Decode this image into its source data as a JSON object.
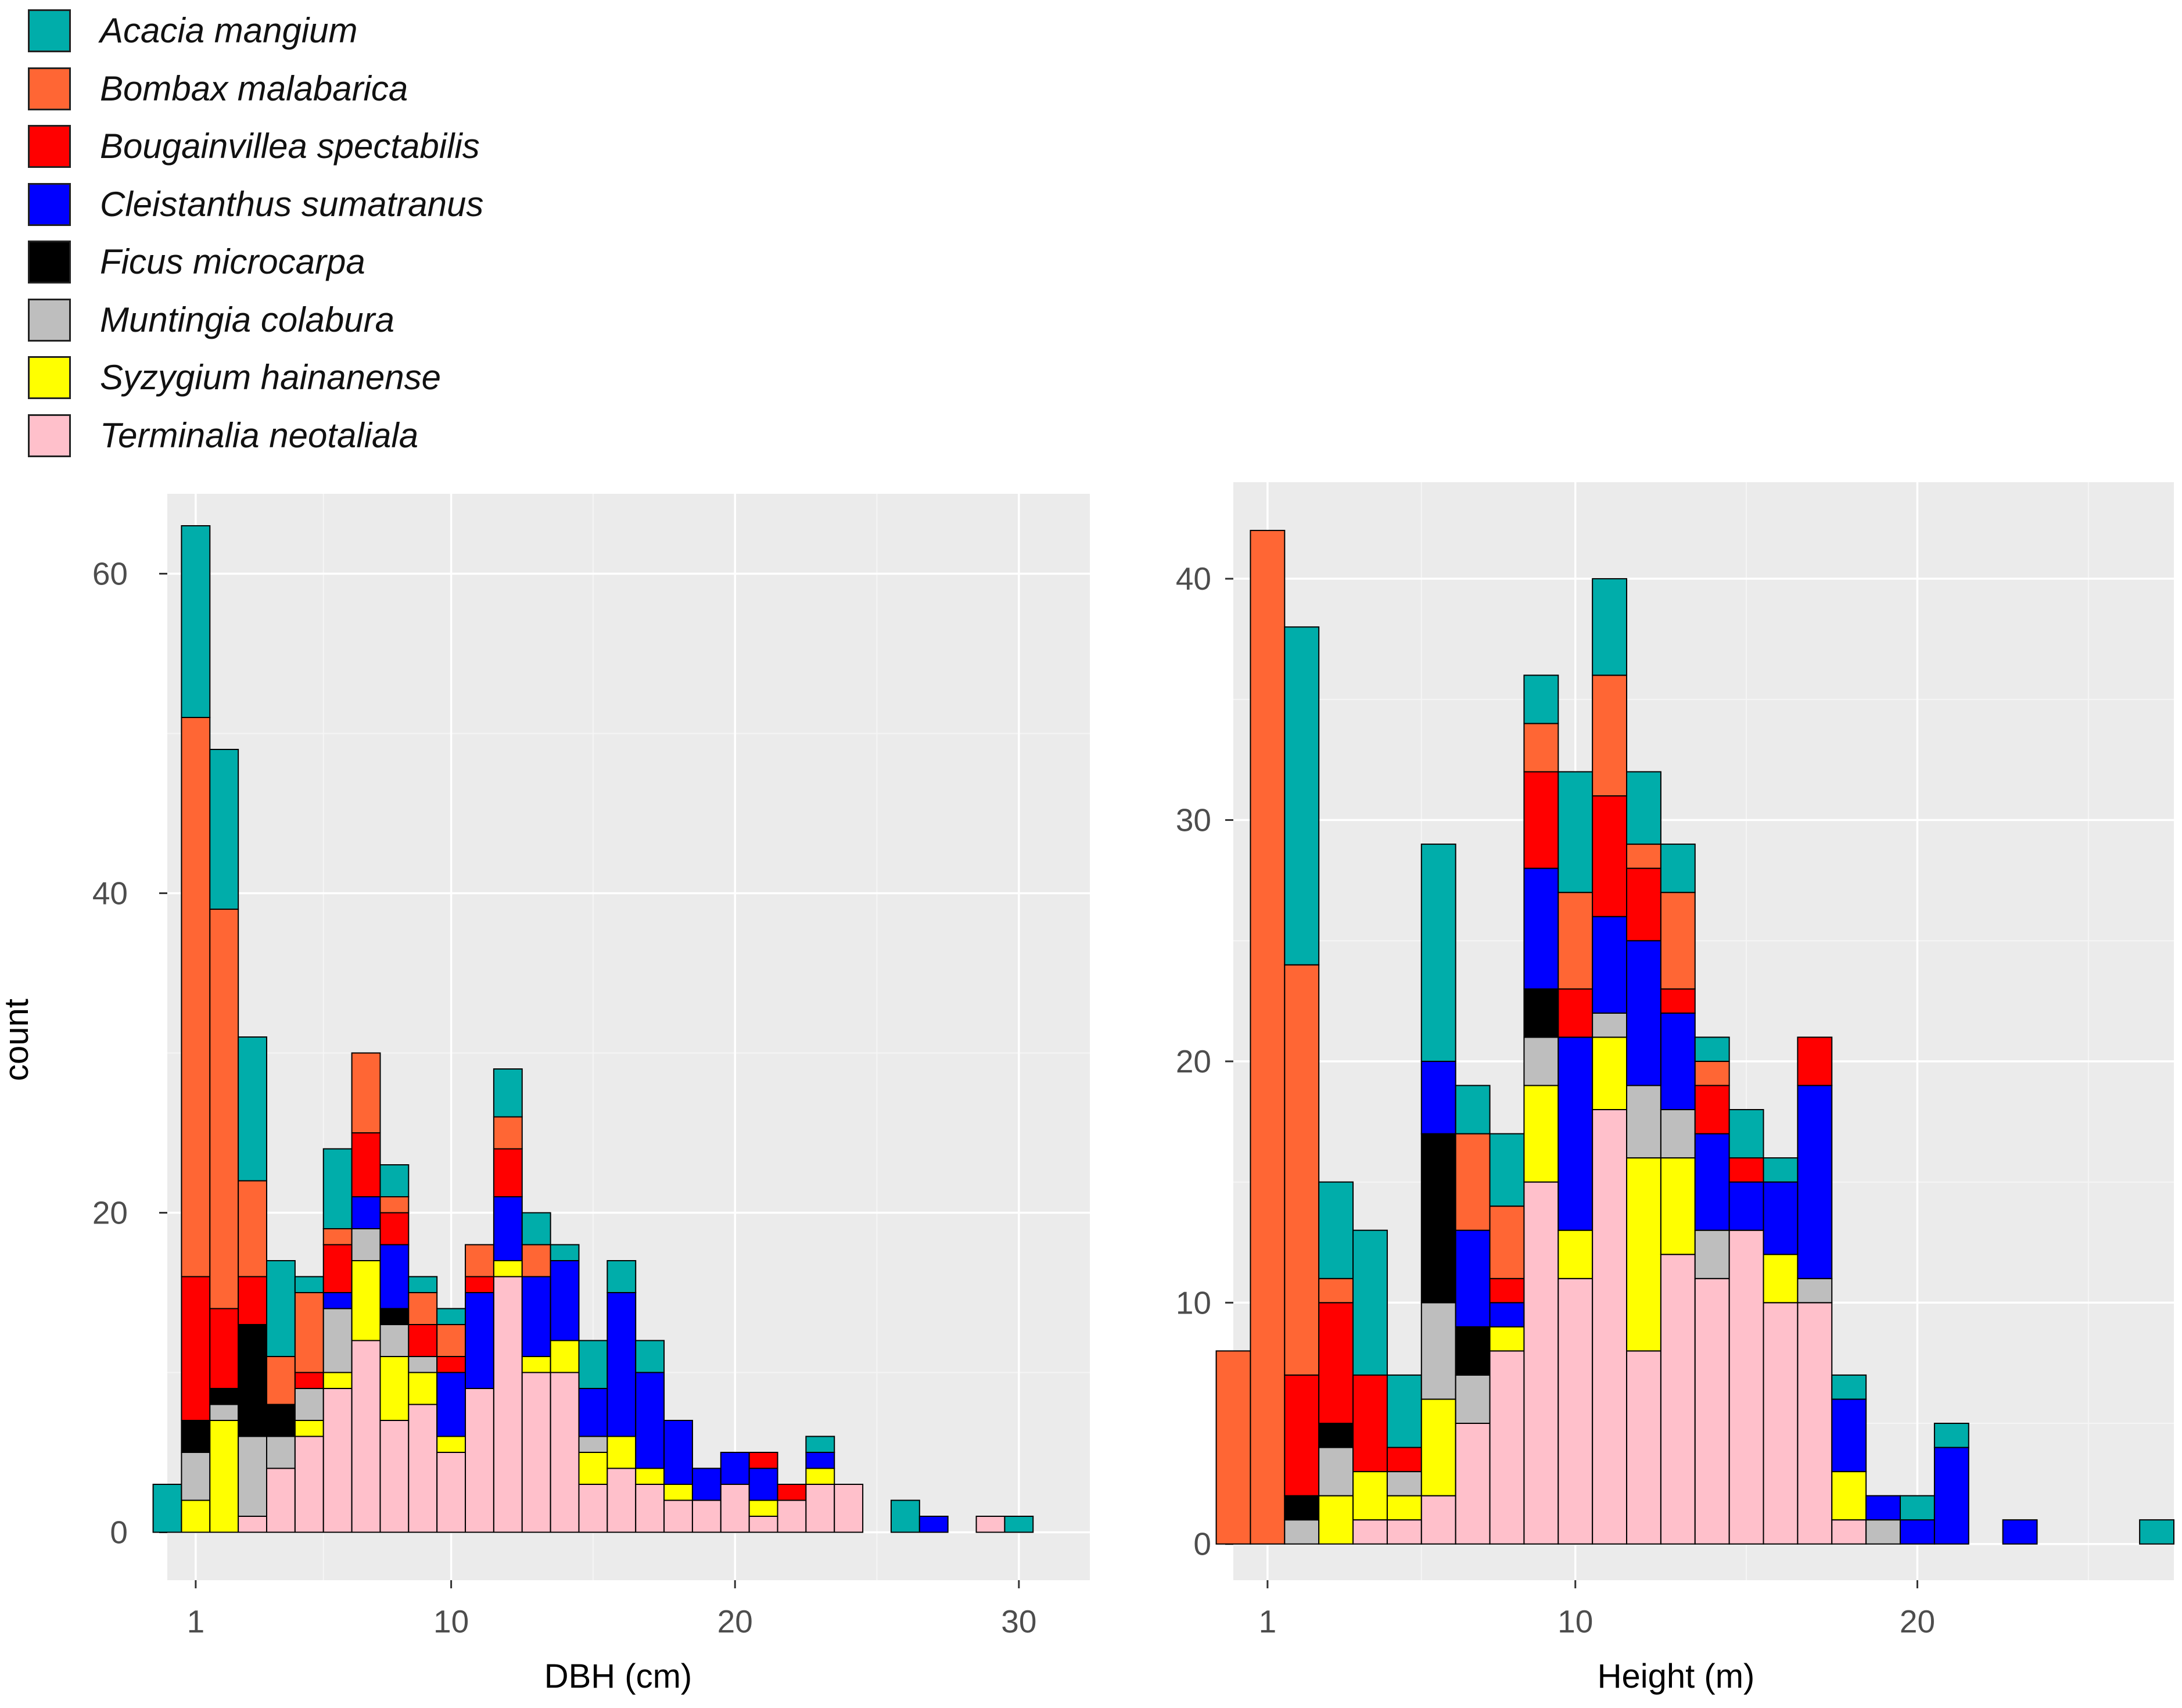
{
  "legend": {
    "species": [
      "Acacia mangium",
      "Bombax malabarica",
      "Bougainvillea spectabilis",
      "Cleistanthus sumatranus",
      "Ficus microcarpa",
      "Muntingia colabura",
      "Syzygium hainanense",
      "Terminalia neotaliala"
    ],
    "colors": [
      "#00ADAA",
      "#FF6634",
      "#FF0000",
      "#0000FF",
      "#000000",
      "#BEBEBE",
      "#FFFF00",
      "#FFC0CB"
    ],
    "stack_order_bottom_to_top": [
      "Terminalia neotaliala",
      "Syzygium hainanense",
      "Muntingia colabura",
      "Ficus microcarpa",
      "Cleistanthus sumatranus",
      "Bougainvillea spectabilis",
      "Bombax malabarica",
      "Acacia mangium"
    ]
  },
  "chart_data": [
    {
      "type": "bar",
      "stacked": true,
      "xlabel": "DBH (cm)",
      "ylabel": "count",
      "xlim": [
        0,
        32.5
      ],
      "ylim": [
        -3,
        65
      ],
      "x_ticks": [
        1,
        10,
        20,
        30
      ],
      "y_ticks": [
        0,
        20,
        40,
        60
      ],
      "bins": [
        {
          "x": 0,
          "Acacia mangium": 3
        },
        {
          "x": 1,
          "Terminalia neotaliala": 0,
          "Syzygium hainanense": 2,
          "Muntingia colabura": 3,
          "Ficus microcarpa": 2,
          "Bougainvillea spectabilis": 9,
          "Bombax malabarica": 35,
          "Acacia mangium": 12
        },
        {
          "x": 2,
          "Syzygium hainanense": 7,
          "Muntingia colabura": 1,
          "Ficus microcarpa": 1,
          "Bougainvillea spectabilis": 5,
          "Bombax malabarica": 25,
          "Acacia mangium": 10
        },
        {
          "x": 3,
          "Terminalia neotaliala": 1,
          "Muntingia colabura": 5,
          "Ficus microcarpa": 7,
          "Bougainvillea spectabilis": 3,
          "Bombax malabarica": 6,
          "Acacia mangium": 9
        },
        {
          "x": 4,
          "Terminalia neotaliala": 4,
          "Muntingia colabura": 2,
          "Ficus microcarpa": 2,
          "Bombax malabarica": 3,
          "Acacia mangium": 6
        },
        {
          "x": 5,
          "Terminalia neotaliala": 6,
          "Syzygium hainanense": 1,
          "Muntingia colabura": 2,
          "Bougainvillea spectabilis": 1,
          "Bombax malabarica": 5,
          "Acacia mangium": 1
        },
        {
          "x": 6,
          "Terminalia neotaliala": 9,
          "Syzygium hainanense": 1,
          "Muntingia colabura": 4,
          "Cleistanthus sumatranus": 1,
          "Bougainvillea spectabilis": 3,
          "Bombax malabarica": 1,
          "Acacia mangium": 5
        },
        {
          "x": 7,
          "Terminalia neotaliala": 12,
          "Syzygium hainanense": 5,
          "Muntingia colabura": 2,
          "Cleistanthus sumatranus": 2,
          "Bougainvillea spectabilis": 4,
          "Bombax malabarica": 5
        },
        {
          "x": 8,
          "Terminalia neotaliala": 7,
          "Syzygium hainanense": 4,
          "Muntingia colabura": 2,
          "Ficus microcarpa": 1,
          "Cleistanthus sumatranus": 4,
          "Bougainvillea spectabilis": 2,
          "Bombax malabarica": 1,
          "Acacia mangium": 2
        },
        {
          "x": 9,
          "Terminalia neotaliala": 8,
          "Syzygium hainanense": 2,
          "Muntingia colabura": 1,
          "Bougainvillea spectabilis": 2,
          "Bombax malabarica": 2,
          "Acacia mangium": 1
        },
        {
          "x": 10,
          "Terminalia neotaliala": 5,
          "Syzygium hainanense": 1,
          "Cleistanthus sumatranus": 4,
          "Bougainvillea spectabilis": 1,
          "Bombax malabarica": 2,
          "Acacia mangium": 1
        },
        {
          "x": 11,
          "Terminalia neotaliala": 9,
          "Cleistanthus sumatranus": 6,
          "Bougainvillea spectabilis": 1,
          "Bombax malabarica": 2
        },
        {
          "x": 12,
          "Terminalia neotaliala": 16,
          "Syzygium hainanense": 1,
          "Cleistanthus sumatranus": 4,
          "Bougainvillea spectabilis": 3,
          "Bombax malabarica": 2,
          "Acacia mangium": 3
        },
        {
          "x": 13,
          "Terminalia neotaliala": 10,
          "Syzygium hainanense": 1,
          "Cleistanthus sumatranus": 5,
          "Bombax malabarica": 2,
          "Acacia mangium": 2
        },
        {
          "x": 14,
          "Terminalia neotaliala": 10,
          "Syzygium hainanense": 2,
          "Cleistanthus sumatranus": 5,
          "Acacia mangium": 1
        },
        {
          "x": 15,
          "Terminalia neotaliala": 3,
          "Syzygium hainanense": 2,
          "Muntingia colabura": 1,
          "Cleistanthus sumatranus": 3,
          "Acacia mangium": 3
        },
        {
          "x": 16,
          "Terminalia neotaliala": 4,
          "Syzygium hainanense": 2,
          "Cleistanthus sumatranus": 9,
          "Acacia mangium": 2
        },
        {
          "x": 17,
          "Terminalia neotaliala": 3,
          "Syzygium hainanense": 1,
          "Cleistanthus sumatranus": 6,
          "Acacia mangium": 2
        },
        {
          "x": 18,
          "Terminalia neotaliala": 2,
          "Syzygium hainanense": 1,
          "Cleistanthus sumatranus": 4
        },
        {
          "x": 19,
          "Terminalia neotaliala": 2,
          "Cleistanthus sumatranus": 2
        },
        {
          "x": 20,
          "Terminalia neotaliala": 3,
          "Cleistanthus sumatranus": 2
        },
        {
          "x": 21,
          "Terminalia neotaliala": 1,
          "Syzygium hainanense": 1,
          "Cleistanthus sumatranus": 2,
          "Bougainvillea spectabilis": 1
        },
        {
          "x": 22,
          "Terminalia neotaliala": 2,
          "Bougainvillea spectabilis": 1
        },
        {
          "x": 23,
          "Terminalia neotaliala": 3,
          "Syzygium hainanense": 1,
          "Cleistanthus sumatranus": 1,
          "Acacia mangium": 1
        },
        {
          "x": 24,
          "Terminalia neotaliala": 3
        },
        {
          "x": 26,
          "Acacia mangium": 2
        },
        {
          "x": 27,
          "Cleistanthus sumatranus": 1
        },
        {
          "x": 29,
          "Terminalia neotaliala": 1
        },
        {
          "x": 30,
          "Acacia mangium": 1
        }
      ]
    },
    {
      "type": "bar",
      "stacked": true,
      "xlabel": "Height (m)",
      "ylabel": "",
      "xlim": [
        0,
        27.5
      ],
      "ylim": [
        -1.5,
        44
      ],
      "x_ticks": [
        1,
        10,
        20
      ],
      "y_ticks": [
        0,
        10,
        20,
        30,
        40
      ],
      "bins": [
        {
          "x": 0,
          "Bombax malabarica": 8
        },
        {
          "x": 1,
          "Bombax malabarica": 42
        },
        {
          "x": 2,
          "Muntingia colabura": 1,
          "Ficus microcarpa": 1,
          "Bougainvillea spectabilis": 5,
          "Bombax malabarica": 17,
          "Acacia mangium": 14
        },
        {
          "x": 3,
          "Syzygium hainanense": 2,
          "Muntingia colabura": 2,
          "Ficus microcarpa": 1,
          "Bougainvillea spectabilis": 5,
          "Bombax malabarica": 1,
          "Acacia mangium": 4
        },
        {
          "x": 4,
          "Terminalia neotaliala": 1,
          "Syzygium hainanense": 2,
          "Bougainvillea spectabilis": 4,
          "Acacia mangium": 6
        },
        {
          "x": 5,
          "Terminalia neotaliala": 1,
          "Syzygium hainanense": 1,
          "Muntingia colabura": 1,
          "Bougainvillea spectabilis": 1,
          "Acacia mangium": 3
        },
        {
          "x": 6,
          "Terminalia neotaliala": 2,
          "Syzygium hainanense": 4,
          "Muntingia colabura": 4,
          "Ficus microcarpa": 7,
          "Cleistanthus sumatranus": 3,
          "Acacia mangium": 9
        },
        {
          "x": 7,
          "Terminalia neotaliala": 5,
          "Muntingia colabura": 2,
          "Ficus microcarpa": 2,
          "Cleistanthus sumatranus": 4,
          "Bombax malabarica": 4,
          "Acacia mangium": 2
        },
        {
          "x": 8,
          "Terminalia neotaliala": 8,
          "Syzygium hainanense": 1,
          "Cleistanthus sumatranus": 1,
          "Bougainvillea spectabilis": 1,
          "Bombax malabarica": 3,
          "Acacia mangium": 3
        },
        {
          "x": 9,
          "Terminalia neotaliala": 15,
          "Syzygium hainanense": 4,
          "Muntingia colabura": 2,
          "Ficus microcarpa": 2,
          "Cleistanthus sumatranus": 5,
          "Bougainvillea spectabilis": 4,
          "Bombax malabarica": 2,
          "Acacia mangium": 2
        },
        {
          "x": 10,
          "Terminalia neotaliala": 11,
          "Syzygium hainanense": 2,
          "Cleistanthus sumatranus": 8,
          "Bougainvillea spectabilis": 2,
          "Bombax malabarica": 4,
          "Acacia mangium": 5
        },
        {
          "x": 11,
          "Terminalia neotaliala": 18,
          "Syzygium hainanense": 3,
          "Muntingia colabura": 1,
          "Cleistanthus sumatranus": 4,
          "Bougainvillea spectabilis": 5,
          "Bombax malabarica": 5,
          "Acacia mangium": 4
        },
        {
          "x": 12,
          "Terminalia neotaliala": 8,
          "Syzygium hainanense": 8,
          "Muntingia colabura": 3,
          "Cleistanthus sumatranus": 6,
          "Bougainvillea spectabilis": 3,
          "Bombax malabarica": 1,
          "Acacia mangium": 3
        },
        {
          "x": 13,
          "Terminalia neotaliala": 12,
          "Syzygium hainanense": 4,
          "Muntingia colabura": 2,
          "Cleistanthus sumatranus": 4,
          "Bougainvillea spectabilis": 1,
          "Bombax malabarica": 4,
          "Acacia mangium": 2
        },
        {
          "x": 14,
          "Terminalia neotaliala": 11,
          "Muntingia colabura": 2,
          "Cleistanthus sumatranus": 4,
          "Bougainvillea spectabilis": 2,
          "Bombax malabarica": 1,
          "Acacia mangium": 1
        },
        {
          "x": 15,
          "Terminalia neotaliala": 13,
          "Cleistanthus sumatranus": 2,
          "Bougainvillea spectabilis": 1,
          "Acacia mangium": 2
        },
        {
          "x": 16,
          "Terminalia neotaliala": 10,
          "Syzygium hainanense": 2,
          "Cleistanthus sumatranus": 3,
          "Acacia mangium": 1
        },
        {
          "x": 17,
          "Terminalia neotaliala": 10,
          "Muntingia colabura": 1,
          "Cleistanthus sumatranus": 8,
          "Bougainvillea spectabilis": 2
        },
        {
          "x": 18,
          "Terminalia neotaliala": 1,
          "Syzygium hainanense": 2,
          "Cleistanthus sumatranus": 3,
          "Acacia mangium": 1
        },
        {
          "x": 19,
          "Muntingia colabura": 1,
          "Cleistanthus sumatranus": 1
        },
        {
          "x": 20,
          "Cleistanthus sumatranus": 1,
          "Acacia mangium": 1
        },
        {
          "x": 21,
          "Cleistanthus sumatranus": 4,
          "Acacia mangium": 1
        },
        {
          "x": 23,
          "Cleistanthus sumatranus": 1
        },
        {
          "x": 27,
          "Acacia mangium": 1
        }
      ]
    }
  ]
}
